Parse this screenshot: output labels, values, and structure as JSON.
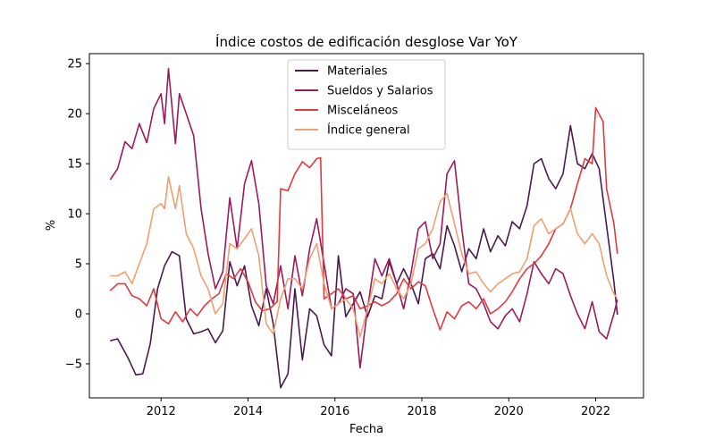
{
  "chart_data": {
    "type": "line",
    "title": "Índice costos de edificación desglose Var YoY",
    "xlabel": "Fecha",
    "ylabel": "%",
    "xlim": [
      2010.35,
      2023.1
    ],
    "ylim": [
      -8.4,
      26.0
    ],
    "xticks": [
      2012,
      2014,
      2016,
      2018,
      2020,
      2022
    ],
    "yticks": [
      -5,
      0,
      5,
      10,
      15,
      20,
      25
    ],
    "grid": false,
    "legend_position": "top-center",
    "series": [
      {
        "name": "Materiales",
        "color": "#4a1a4c",
        "points": [
          [
            2010.83,
            -2.7
          ],
          [
            2011.0,
            -2.5
          ],
          [
            2011.25,
            -4.5
          ],
          [
            2011.42,
            -6.1
          ],
          [
            2011.58,
            -6.0
          ],
          [
            2011.75,
            -3.0
          ],
          [
            2011.92,
            2.5
          ],
          [
            2012.08,
            4.8
          ],
          [
            2012.25,
            6.2
          ],
          [
            2012.42,
            5.8
          ],
          [
            2012.58,
            -0.5
          ],
          [
            2012.75,
            -2.0
          ],
          [
            2012.92,
            -1.8
          ],
          [
            2013.08,
            -1.5
          ],
          [
            2013.25,
            -2.9
          ],
          [
            2013.42,
            -1.7
          ],
          [
            2013.58,
            5.2
          ],
          [
            2013.75,
            2.8
          ],
          [
            2013.92,
            4.8
          ],
          [
            2014.08,
            0.8
          ],
          [
            2014.25,
            -1.2
          ],
          [
            2014.42,
            2.5
          ],
          [
            2014.58,
            -1.0
          ],
          [
            2014.75,
            -7.4
          ],
          [
            2014.92,
            -6.0
          ],
          [
            2015.08,
            2.5
          ],
          [
            2015.25,
            -4.6
          ],
          [
            2015.42,
            0.5
          ],
          [
            2015.58,
            -0.2
          ],
          [
            2015.75,
            -3.1
          ],
          [
            2015.92,
            -4.2
          ],
          [
            2016.08,
            5.8
          ],
          [
            2016.25,
            -0.3
          ],
          [
            2016.42,
            1.0
          ],
          [
            2016.58,
            2.2
          ],
          [
            2016.75,
            -0.3
          ],
          [
            2016.92,
            1.8
          ],
          [
            2017.08,
            1.5
          ],
          [
            2017.25,
            5.2
          ],
          [
            2017.42,
            3.0
          ],
          [
            2017.58,
            4.5
          ],
          [
            2017.75,
            3.0
          ],
          [
            2017.92,
            1.0
          ],
          [
            2018.08,
            5.5
          ],
          [
            2018.25,
            6.0
          ],
          [
            2018.42,
            4.5
          ],
          [
            2018.58,
            8.8
          ],
          [
            2018.75,
            6.8
          ],
          [
            2018.92,
            4.2
          ],
          [
            2019.08,
            6.5
          ],
          [
            2019.25,
            5.5
          ],
          [
            2019.42,
            8.5
          ],
          [
            2019.58,
            6.2
          ],
          [
            2019.75,
            7.8
          ],
          [
            2019.92,
            6.8
          ],
          [
            2020.08,
            9.2
          ],
          [
            2020.25,
            8.5
          ],
          [
            2020.42,
            10.8
          ],
          [
            2020.58,
            15.0
          ],
          [
            2020.75,
            15.5
          ],
          [
            2020.92,
            13.5
          ],
          [
            2021.08,
            12.5
          ],
          [
            2021.25,
            14.0
          ],
          [
            2021.42,
            18.8
          ],
          [
            2021.58,
            15.0
          ],
          [
            2021.75,
            14.5
          ],
          [
            2021.92,
            16.0
          ],
          [
            2022.08,
            14.5
          ],
          [
            2022.25,
            8.8
          ],
          [
            2022.42,
            3.2
          ],
          [
            2022.5,
            -0.1
          ]
        ]
      },
      {
        "name": "Sueldos y Salarios",
        "color": "#9b1b5e",
        "points": [
          [
            2010.83,
            13.4
          ],
          [
            2011.0,
            14.5
          ],
          [
            2011.17,
            17.2
          ],
          [
            2011.33,
            16.5
          ],
          [
            2011.5,
            19.0
          ],
          [
            2011.67,
            17.1
          ],
          [
            2011.83,
            20.5
          ],
          [
            2012.0,
            22.0
          ],
          [
            2012.08,
            19.0
          ],
          [
            2012.17,
            24.5
          ],
          [
            2012.33,
            17.0
          ],
          [
            2012.42,
            22.0
          ],
          [
            2012.58,
            20.0
          ],
          [
            2012.75,
            17.8
          ],
          [
            2012.92,
            10.5
          ],
          [
            2013.08,
            6.0
          ],
          [
            2013.25,
            2.5
          ],
          [
            2013.42,
            4.2
          ],
          [
            2013.58,
            11.6
          ],
          [
            2013.75,
            6.5
          ],
          [
            2013.92,
            13.0
          ],
          [
            2014.08,
            15.3
          ],
          [
            2014.25,
            11.0
          ],
          [
            2014.42,
            2.8
          ],
          [
            2014.58,
            1.0
          ],
          [
            2014.75,
            4.8
          ],
          [
            2014.92,
            0.5
          ],
          [
            2015.08,
            5.8
          ],
          [
            2015.25,
            1.8
          ],
          [
            2015.42,
            6.5
          ],
          [
            2015.58,
            9.5
          ],
          [
            2015.75,
            5.0
          ],
          [
            2015.92,
            0.5
          ],
          [
            2016.08,
            1.0
          ],
          [
            2016.25,
            2.5
          ],
          [
            2016.42,
            2.0
          ],
          [
            2016.58,
            -5.4
          ],
          [
            2016.75,
            0.5
          ],
          [
            2016.92,
            5.5
          ],
          [
            2017.08,
            3.8
          ],
          [
            2017.25,
            5.5
          ],
          [
            2017.42,
            3.0
          ],
          [
            2017.58,
            0.5
          ],
          [
            2017.75,
            4.0
          ],
          [
            2017.92,
            8.5
          ],
          [
            2018.08,
            9.2
          ],
          [
            2018.25,
            5.5
          ],
          [
            2018.42,
            7.0
          ],
          [
            2018.58,
            14.0
          ],
          [
            2018.75,
            15.3
          ],
          [
            2018.92,
            8.5
          ],
          [
            2019.08,
            3.0
          ],
          [
            2019.25,
            2.5
          ],
          [
            2019.42,
            1.0
          ],
          [
            2019.58,
            -0.8
          ],
          [
            2019.75,
            -1.5
          ],
          [
            2019.92,
            -0.2
          ],
          [
            2020.08,
            0.5
          ],
          [
            2020.25,
            -0.8
          ],
          [
            2020.42,
            2.0
          ],
          [
            2020.58,
            5.2
          ],
          [
            2020.75,
            4.0
          ],
          [
            2020.92,
            3.0
          ],
          [
            2021.08,
            4.5
          ],
          [
            2021.25,
            4.0
          ],
          [
            2021.42,
            1.8
          ],
          [
            2021.58,
            0.0
          ],
          [
            2021.75,
            -1.5
          ],
          [
            2021.92,
            1.2
          ],
          [
            2022.08,
            -1.8
          ],
          [
            2022.25,
            -2.5
          ],
          [
            2022.42,
            0.0
          ],
          [
            2022.5,
            1.4
          ]
        ]
      },
      {
        "name": "Misceláneos",
        "color": "#e03a3e",
        "points": [
          [
            2010.83,
            2.3
          ],
          [
            2011.0,
            3.0
          ],
          [
            2011.17,
            3.0
          ],
          [
            2011.33,
            1.8
          ],
          [
            2011.5,
            1.5
          ],
          [
            2011.67,
            0.8
          ],
          [
            2011.83,
            2.5
          ],
          [
            2012.0,
            -0.5
          ],
          [
            2012.17,
            -1.0
          ],
          [
            2012.33,
            0.2
          ],
          [
            2012.5,
            -0.8
          ],
          [
            2012.67,
            0.5
          ],
          [
            2012.83,
            -0.2
          ],
          [
            2013.0,
            0.8
          ],
          [
            2013.17,
            1.5
          ],
          [
            2013.33,
            2.0
          ],
          [
            2013.5,
            4.0
          ],
          [
            2013.67,
            3.5
          ],
          [
            2013.83,
            4.5
          ],
          [
            2014.0,
            3.2
          ],
          [
            2014.17,
            1.2
          ],
          [
            2014.33,
            0.3
          ],
          [
            2014.5,
            0.5
          ],
          [
            2014.67,
            1.2
          ],
          [
            2014.75,
            12.5
          ],
          [
            2014.92,
            12.3
          ],
          [
            2015.08,
            14.0
          ],
          [
            2015.25,
            15.2
          ],
          [
            2015.42,
            14.6
          ],
          [
            2015.58,
            15.5
          ],
          [
            2015.67,
            15.6
          ],
          [
            2015.75,
            1.5
          ],
          [
            2015.92,
            2.0
          ],
          [
            2016.08,
            2.5
          ],
          [
            2016.25,
            1.5
          ],
          [
            2016.42,
            1.8
          ],
          [
            2016.58,
            0.5
          ],
          [
            2016.75,
            0.8
          ],
          [
            2016.92,
            1.2
          ],
          [
            2017.08,
            0.8
          ],
          [
            2017.25,
            1.2
          ],
          [
            2017.42,
            2.0
          ],
          [
            2017.58,
            3.5
          ],
          [
            2017.75,
            2.5
          ],
          [
            2017.92,
            3.2
          ],
          [
            2018.08,
            2.8
          ],
          [
            2018.25,
            0.5
          ],
          [
            2018.42,
            -1.6
          ],
          [
            2018.58,
            0.2
          ],
          [
            2018.75,
            -0.5
          ],
          [
            2018.92,
            0.8
          ],
          [
            2019.08,
            1.2
          ],
          [
            2019.25,
            0.5
          ],
          [
            2019.42,
            1.5
          ],
          [
            2019.58,
            0.0
          ],
          [
            2019.75,
            0.5
          ],
          [
            2019.92,
            1.2
          ],
          [
            2020.08,
            2.2
          ],
          [
            2020.25,
            3.5
          ],
          [
            2020.42,
            4.5
          ],
          [
            2020.58,
            5.0
          ],
          [
            2020.75,
            5.8
          ],
          [
            2020.92,
            7.0
          ],
          [
            2021.08,
            8.5
          ],
          [
            2021.25,
            9.0
          ],
          [
            2021.42,
            10.5
          ],
          [
            2021.58,
            13.0
          ],
          [
            2021.75,
            15.5
          ],
          [
            2021.92,
            15.0
          ],
          [
            2022.0,
            20.6
          ],
          [
            2022.17,
            19.2
          ],
          [
            2022.25,
            12.5
          ],
          [
            2022.42,
            9.0
          ],
          [
            2022.5,
            6.0
          ]
        ]
      },
      {
        "name": "Índice general",
        "color": "#f0a070",
        "points": [
          [
            2010.83,
            3.8
          ],
          [
            2011.0,
            3.8
          ],
          [
            2011.17,
            4.2
          ],
          [
            2011.33,
            3.0
          ],
          [
            2011.5,
            5.0
          ],
          [
            2011.67,
            7.0
          ],
          [
            2011.83,
            10.5
          ],
          [
            2012.0,
            11.0
          ],
          [
            2012.08,
            10.5
          ],
          [
            2012.17,
            13.7
          ],
          [
            2012.33,
            10.5
          ],
          [
            2012.42,
            12.8
          ],
          [
            2012.58,
            8.0
          ],
          [
            2012.75,
            6.5
          ],
          [
            2012.92,
            3.8
          ],
          [
            2013.08,
            2.5
          ],
          [
            2013.25,
            0.0
          ],
          [
            2013.42,
            1.0
          ],
          [
            2013.58,
            7.0
          ],
          [
            2013.75,
            6.5
          ],
          [
            2013.92,
            7.5
          ],
          [
            2014.08,
            8.5
          ],
          [
            2014.25,
            5.8
          ],
          [
            2014.42,
            -1.0
          ],
          [
            2014.58,
            -2.0
          ],
          [
            2014.75,
            1.5
          ],
          [
            2014.92,
            3.5
          ],
          [
            2015.08,
            3.5
          ],
          [
            2015.25,
            2.5
          ],
          [
            2015.42,
            5.5
          ],
          [
            2015.58,
            7.0
          ],
          [
            2015.75,
            3.0
          ],
          [
            2015.92,
            0.5
          ],
          [
            2016.08,
            1.0
          ],
          [
            2016.25,
            1.5
          ],
          [
            2016.42,
            0.5
          ],
          [
            2016.58,
            -2.3
          ],
          [
            2016.75,
            0.5
          ],
          [
            2016.92,
            3.5
          ],
          [
            2017.08,
            3.0
          ],
          [
            2017.25,
            4.0
          ],
          [
            2017.42,
            2.5
          ],
          [
            2017.58,
            1.5
          ],
          [
            2017.75,
            3.0
          ],
          [
            2017.92,
            6.5
          ],
          [
            2018.08,
            7.0
          ],
          [
            2018.25,
            8.5
          ],
          [
            2018.42,
            11.2
          ],
          [
            2018.58,
            12.0
          ],
          [
            2018.75,
            9.0
          ],
          [
            2018.92,
            6.0
          ],
          [
            2019.08,
            4.0
          ],
          [
            2019.25,
            4.2
          ],
          [
            2019.42,
            3.0
          ],
          [
            2019.58,
            2.2
          ],
          [
            2019.75,
            3.0
          ],
          [
            2019.92,
            3.5
          ],
          [
            2020.08,
            4.0
          ],
          [
            2020.25,
            4.2
          ],
          [
            2020.42,
            5.5
          ],
          [
            2020.58,
            8.8
          ],
          [
            2020.75,
            9.5
          ],
          [
            2020.92,
            8.0
          ],
          [
            2021.08,
            8.5
          ],
          [
            2021.25,
            9.0
          ],
          [
            2021.42,
            10.5
          ],
          [
            2021.58,
            8.0
          ],
          [
            2021.75,
            7.0
          ],
          [
            2021.92,
            8.0
          ],
          [
            2022.08,
            7.0
          ],
          [
            2022.25,
            3.8
          ],
          [
            2022.42,
            2.0
          ],
          [
            2022.5,
            1.5
          ]
        ]
      }
    ]
  }
}
